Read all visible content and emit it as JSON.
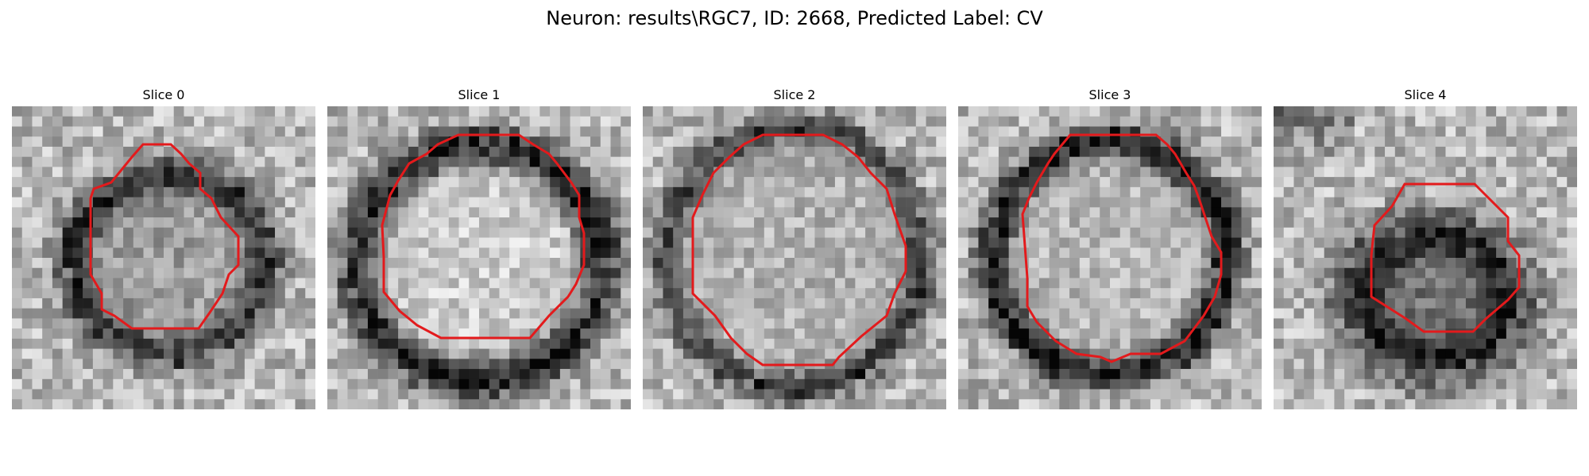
{
  "figure": {
    "title": "Neuron: results\\RGC7, ID: 2668, Predicted Label: CV"
  },
  "panels": [
    {
      "title": "Slice 0"
    },
    {
      "title": "Slice 1"
    },
    {
      "title": "Slice 2"
    },
    {
      "title": "Slice 3"
    },
    {
      "title": "Slice 4"
    }
  ],
  "contour_color": "#e31a1c"
}
